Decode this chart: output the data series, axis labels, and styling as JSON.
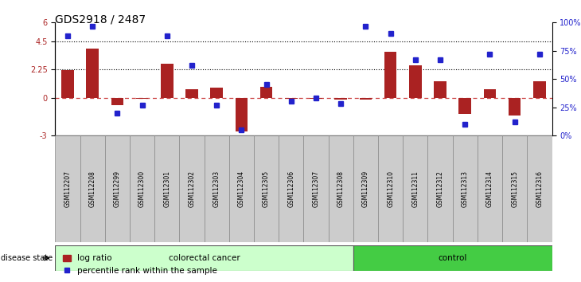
{
  "title": "GDS2918 / 2487",
  "samples": [
    "GSM112207",
    "GSM112208",
    "GSM112299",
    "GSM112300",
    "GSM112301",
    "GSM112302",
    "GSM112303",
    "GSM112304",
    "GSM112305",
    "GSM112306",
    "GSM112307",
    "GSM112308",
    "GSM112309",
    "GSM112310",
    "GSM112311",
    "GSM112312",
    "GSM112313",
    "GSM112314",
    "GSM112315",
    "GSM112316"
  ],
  "log_ratio": [
    2.2,
    3.9,
    -0.6,
    -0.1,
    2.7,
    0.7,
    0.8,
    -2.7,
    0.85,
    -0.05,
    -0.1,
    -0.15,
    -0.15,
    3.7,
    2.6,
    1.3,
    -1.3,
    0.7,
    -1.4,
    1.3
  ],
  "percentile": [
    88,
    97,
    20,
    27,
    88,
    62,
    27,
    5,
    45,
    30,
    33,
    28,
    97,
    90,
    67,
    67,
    10,
    72,
    12,
    72
  ],
  "colorectal_count": 12,
  "control_count": 8,
  "ylim_left": [
    -3,
    6
  ],
  "ylim_right": [
    0,
    100
  ],
  "yticks_left": [
    -3,
    0,
    2.25,
    4.5,
    6
  ],
  "yticks_right": [
    0,
    25,
    50,
    75,
    100
  ],
  "ytick_labels_left": [
    "-3",
    "0",
    "2.25",
    "4.5",
    "6"
  ],
  "ytick_labels_right": [
    "0%",
    "25%",
    "50%",
    "75%",
    "100%"
  ],
  "hlines": [
    4.5,
    2.25
  ],
  "bar_color": "#aa2222",
  "marker_color": "#2222cc",
  "zero_line_color": "#cc4444",
  "colorectal_label": "colorectal cancer",
  "control_label": "control",
  "disease_state_label": "disease state",
  "legend_bar": "log ratio",
  "legend_marker": "percentile rank within the sample",
  "colorectal_color": "#ccffcc",
  "control_color": "#44cc44",
  "bar_width": 0.5,
  "marker_size": 5
}
